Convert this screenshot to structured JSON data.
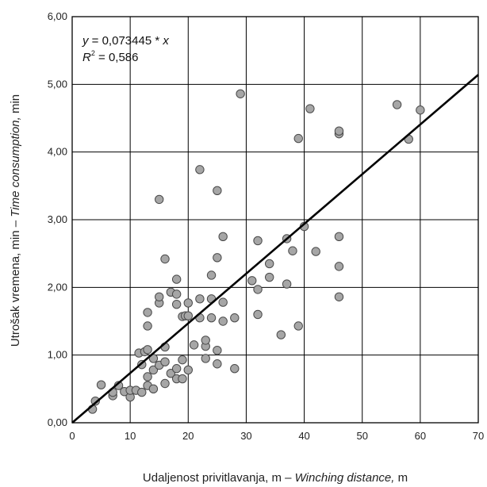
{
  "chart_data": {
    "type": "scatter",
    "title": "",
    "xlabel_prefix": "Udaljenost privitlavanja, m – ",
    "xlabel_italic": "Winching distance,",
    "xlabel_suffix": " m",
    "ylabel_prefix": "Utrošak vremena, min – ",
    "ylabel_italic": "Time consumption,",
    "ylabel_suffix": " min",
    "xlim": [
      0,
      70
    ],
    "ylim": [
      0,
      6
    ],
    "xticks": [
      0,
      10,
      20,
      30,
      40,
      50,
      60,
      70
    ],
    "xtick_labels": [
      "0",
      "10",
      "20",
      "30",
      "40",
      "50",
      "60",
      "70"
    ],
    "yticks": [
      0,
      1,
      2,
      3,
      4,
      5,
      6
    ],
    "ytick_labels": [
      "0,00",
      "1,00",
      "2,00",
      "3,00",
      "4,00",
      "5,00",
      "6,00"
    ],
    "grid": true,
    "equation": {
      "y_part": "y",
      "eq_text": " = 0,073445 * ",
      "x_part": "x",
      "r_part": "R",
      "r_sup": "2",
      "r_text": " = 0,586"
    },
    "trendline": {
      "slope": 0.073445,
      "x_range": [
        0,
        70
      ]
    },
    "points": [
      [
        3.5,
        0.2
      ],
      [
        4,
        0.32
      ],
      [
        5,
        0.56
      ],
      [
        7,
        0.4
      ],
      [
        7,
        0.45
      ],
      [
        8,
        0.55
      ],
      [
        9,
        0.46
      ],
      [
        10,
        0.38
      ],
      [
        10,
        0.48
      ],
      [
        11,
        0.48
      ],
      [
        11.5,
        1.03
      ],
      [
        12,
        0.45
      ],
      [
        12,
        0.86
      ],
      [
        12.5,
        1.05
      ],
      [
        13,
        0.55
      ],
      [
        13,
        0.68
      ],
      [
        13,
        1.08
      ],
      [
        13,
        1.43
      ],
      [
        13,
        1.63
      ],
      [
        14,
        0.5
      ],
      [
        14,
        0.78
      ],
      [
        14,
        0.95
      ],
      [
        15,
        0.85
      ],
      [
        15,
        1.77
      ],
      [
        15,
        1.86
      ],
      [
        15,
        3.3
      ],
      [
        16,
        0.58
      ],
      [
        16,
        0.9
      ],
      [
        16,
        1.12
      ],
      [
        16,
        2.42
      ],
      [
        17,
        0.73
      ],
      [
        17,
        1.93
      ],
      [
        18,
        0.65
      ],
      [
        18,
        0.8
      ],
      [
        18,
        1.75
      ],
      [
        18,
        1.9
      ],
      [
        18,
        2.12
      ],
      [
        19,
        0.65
      ],
      [
        19,
        0.93
      ],
      [
        19,
        1.57
      ],
      [
        19.5,
        1.58
      ],
      [
        20,
        0.78
      ],
      [
        20,
        1.58
      ],
      [
        20,
        1.77
      ],
      [
        21,
        1.15
      ],
      [
        22,
        1.55
      ],
      [
        22,
        1.83
      ],
      [
        22,
        3.74
      ],
      [
        23,
        0.95
      ],
      [
        23,
        1.13
      ],
      [
        23,
        1.22
      ],
      [
        24,
        1.55
      ],
      [
        24,
        1.83
      ],
      [
        24,
        2.18
      ],
      [
        25,
        0.87
      ],
      [
        25,
        1.07
      ],
      [
        25,
        2.44
      ],
      [
        25,
        3.43
      ],
      [
        26,
        1.5
      ],
      [
        26,
        1.78
      ],
      [
        26,
        2.75
      ],
      [
        28,
        0.8
      ],
      [
        28,
        1.55
      ],
      [
        29,
        4.86
      ],
      [
        31,
        2.1
      ],
      [
        32,
        1.6
      ],
      [
        32,
        1.97
      ],
      [
        32,
        2.69
      ],
      [
        34,
        2.15
      ],
      [
        34,
        2.35
      ],
      [
        36,
        1.3
      ],
      [
        37,
        2.05
      ],
      [
        37,
        2.72
      ],
      [
        38,
        2.54
      ],
      [
        39,
        1.43
      ],
      [
        39,
        4.2
      ],
      [
        40,
        2.9
      ],
      [
        41,
        4.64
      ],
      [
        42,
        2.53
      ],
      [
        46,
        1.86
      ],
      [
        46,
        2.31
      ],
      [
        46,
        2.75
      ],
      [
        46,
        4.27
      ],
      [
        46,
        4.31
      ],
      [
        56,
        4.7
      ],
      [
        58,
        4.19
      ],
      [
        60,
        4.62
      ]
    ],
    "colors": {
      "marker_fill": "#a6a6a6",
      "marker_stroke": "#4a4a4a",
      "trendline": "#000000",
      "grid": "#000000"
    }
  }
}
